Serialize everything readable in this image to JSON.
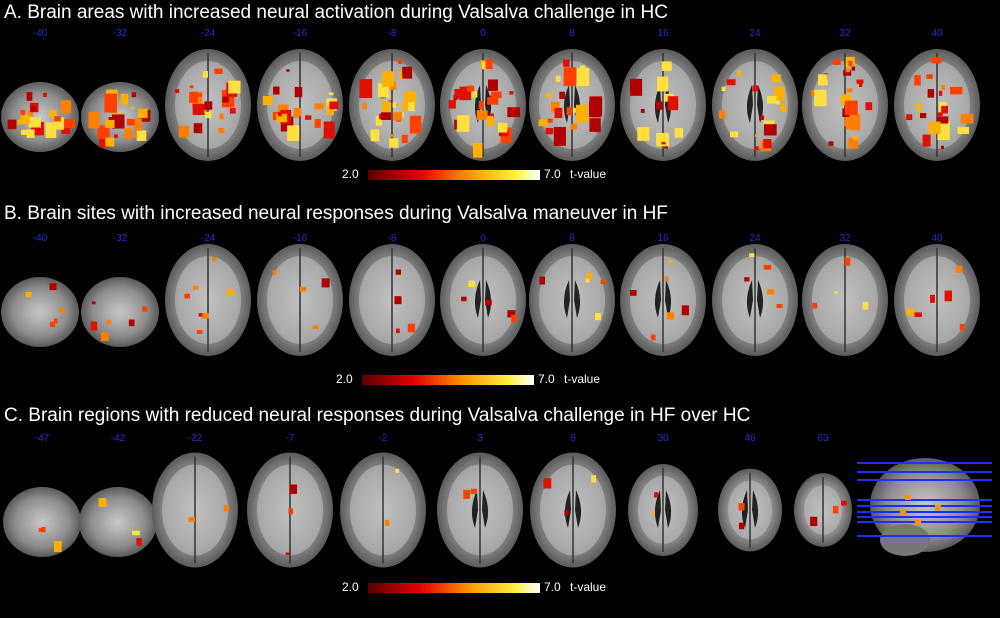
{
  "panels": [
    {
      "title": "A. Brain areas with increased neural activation during Valsalva challenge in HC",
      "slices": [
        "-40",
        "-32",
        "-24",
        "-16",
        "-8",
        "0",
        "8",
        "16",
        "24",
        "32",
        "40"
      ],
      "colorbar": {
        "min": "2.0",
        "max": "7.0",
        "label": "t-value"
      }
    },
    {
      "title": "B.  Brain sites with increased neural responses during Valsalva maneuver in HF",
      "slices": [
        "-40",
        "-32",
        "-24",
        "-16",
        "-8",
        "0",
        "8",
        "16",
        "24",
        "32",
        "40"
      ],
      "colorbar": {
        "min": "2.0",
        "max": "7.0",
        "label": "t-value"
      }
    },
    {
      "title": "C. Brain regions with reduced neural responses during Valsalva challenge in HF over HC",
      "slices": [
        "-47",
        "-42",
        "-22",
        "-7",
        "-2",
        "3",
        "8",
        "30",
        "46",
        "63"
      ],
      "colorbar": {
        "min": "2.0",
        "max": "7.0",
        "label": "t-value"
      }
    }
  ]
}
